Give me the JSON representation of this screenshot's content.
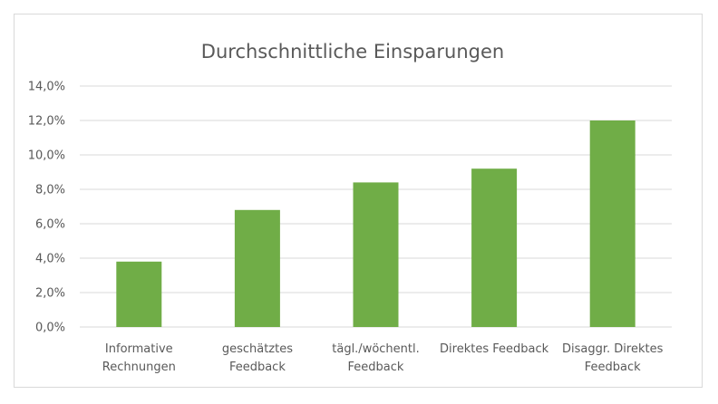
{
  "chart_data": {
    "type": "bar",
    "title": "Durchschnittliche Einsparungen",
    "xlabel": "",
    "ylabel": "",
    "categories": [
      [
        "Informative",
        "Rechnungen"
      ],
      [
        "geschätztes",
        "Feedback"
      ],
      [
        "tägl./wöchentl.",
        "Feedback"
      ],
      [
        "Direktes Feedback"
      ],
      [
        "Disaggr. Direktes",
        "Feedback"
      ]
    ],
    "values": [
      3.8,
      6.8,
      8.4,
      9.2,
      12.0
    ],
    "yticks": [
      "0,0%",
      "2,0%",
      "4,0%",
      "6,0%",
      "8,0%",
      "10,0%",
      "12,0%",
      "14,0%"
    ],
    "ylim": [
      0,
      14
    ],
    "grid": true,
    "legend": "none",
    "bar_color": "#70ad47",
    "grid_color": "#d9d9d9"
  }
}
